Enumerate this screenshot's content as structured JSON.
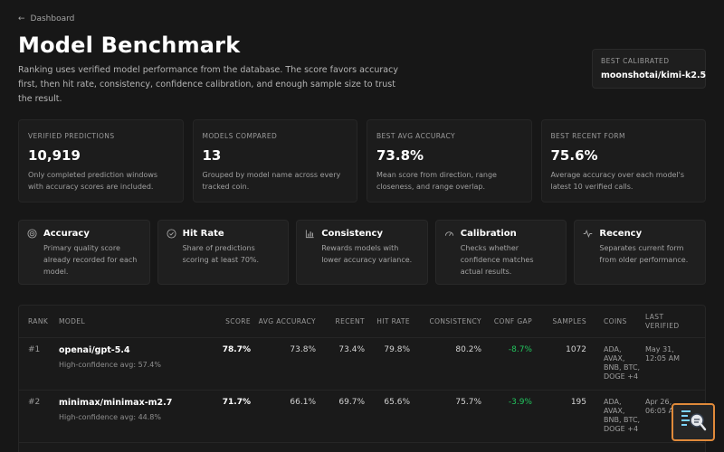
{
  "breadcrumb": {
    "label": "Dashboard"
  },
  "page": {
    "title": "Model Benchmark",
    "intro": "Ranking uses verified model performance from the database. The score favors accuracy first, then hit rate, consistency, confidence calibration, and enough sample size to trust the result."
  },
  "best_calibrated": {
    "label": "BEST CALIBRATED",
    "value": "moonshotai/kimi-k2.5"
  },
  "stats": [
    {
      "label": "VERIFIED PREDICTIONS",
      "value": "10,919",
      "desc": "Only completed prediction windows with accuracy scores are included."
    },
    {
      "label": "MODELS COMPARED",
      "value": "13",
      "desc": "Grouped by model name across every tracked coin."
    },
    {
      "label": "BEST AVG ACCURACY",
      "value": "73.8%",
      "desc": "Mean score from direction, range closeness, and range overlap."
    },
    {
      "label": "BEST RECENT FORM",
      "value": "75.6%",
      "desc": "Average accuracy over each model's latest 10 verified calls."
    }
  ],
  "criteria": [
    {
      "icon": "target-icon",
      "title": "Accuracy",
      "desc": "Primary quality score already recorded for each model."
    },
    {
      "icon": "check-circle-icon",
      "title": "Hit Rate",
      "desc": "Share of predictions scoring at least 70%."
    },
    {
      "icon": "bar-chart-icon",
      "title": "Consistency",
      "desc": "Rewards models with lower accuracy variance."
    },
    {
      "icon": "gauge-icon",
      "title": "Calibration",
      "desc": "Checks whether confidence matches actual results."
    },
    {
      "icon": "activity-icon",
      "title": "Recency",
      "desc": "Separates current form from older performance."
    }
  ],
  "table": {
    "headers": {
      "rank": "RANK",
      "model": "MODEL",
      "score": "SCORE",
      "avg_accuracy": "AVG ACCURACY",
      "recent": "RECENT",
      "hit_rate": "HIT RATE",
      "consistency": "CONSISTENCY",
      "conf_gap": "CONF GAP",
      "samples": "SAMPLES",
      "coins": "COINS",
      "last_verified": "LAST VERIFIED"
    },
    "rows": [
      {
        "rank": "#1",
        "model": "openai/gpt-5.4",
        "sub": "High-confidence avg: 57.4%",
        "score": "78.7%",
        "avg_accuracy": "73.8%",
        "recent": "73.4%",
        "hit_rate": "79.8%",
        "consistency": "80.2%",
        "conf_gap": "-8.7%",
        "samples": "1072",
        "coins": [
          "ADA,",
          "AVAX,",
          "BNB, BTC,",
          "DOGE +4"
        ],
        "last_verified": [
          "May 31,",
          "12:05 AM"
        ]
      },
      {
        "rank": "#2",
        "model": "minimax/minimax-m2.7",
        "sub": "High-confidence avg: 44.8%",
        "score": "71.7%",
        "avg_accuracy": "66.1%",
        "recent": "69.7%",
        "hit_rate": "65.6%",
        "consistency": "75.7%",
        "conf_gap": "-3.9%",
        "samples": "195",
        "coins": [
          "ADA,",
          "AVAX,",
          "BNB, BTC,",
          "DOGE +4"
        ],
        "last_verified": [
          "Apr 26,",
          "06:05 AM"
        ]
      }
    ]
  },
  "colors": {
    "background": "#171717",
    "positive": "#22c55e",
    "fab_border": "#e08a3a"
  }
}
